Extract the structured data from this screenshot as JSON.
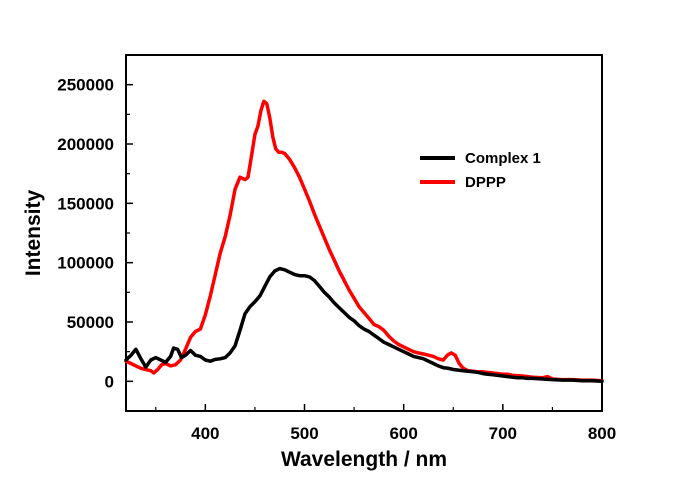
{
  "chart_data": {
    "type": "line",
    "title": "",
    "xlabel": "Wavelength / nm",
    "ylabel": "Intensity",
    "xlim": [
      320,
      800
    ],
    "ylim": [
      -25000,
      275000
    ],
    "x_ticks": [
      400,
      500,
      600,
      700,
      800
    ],
    "y_ticks": [
      0,
      50000,
      100000,
      150000,
      200000,
      250000
    ],
    "x_tick_labels": [
      "400",
      "500",
      "600",
      "700",
      "800"
    ],
    "y_tick_labels": [
      "0",
      "50000",
      "100000",
      "150000",
      "200000",
      "250000"
    ],
    "grid": false,
    "legend_position": "top-right",
    "series": [
      {
        "name": "Complex 1",
        "color": "#000000",
        "points": [
          [
            320,
            18000
          ],
          [
            325,
            22000
          ],
          [
            330,
            27000
          ],
          [
            335,
            19000
          ],
          [
            340,
            12000
          ],
          [
            345,
            18000
          ],
          [
            350,
            20000
          ],
          [
            355,
            18000
          ],
          [
            360,
            16000
          ],
          [
            365,
            21000
          ],
          [
            368,
            28000
          ],
          [
            372,
            27000
          ],
          [
            376,
            20000
          ],
          [
            380,
            22000
          ],
          [
            385,
            26000
          ],
          [
            390,
            22000
          ],
          [
            395,
            21000
          ],
          [
            400,
            18000
          ],
          [
            405,
            17000
          ],
          [
            410,
            18500
          ],
          [
            415,
            19000
          ],
          [
            420,
            20000
          ],
          [
            425,
            24000
          ],
          [
            430,
            30000
          ],
          [
            435,
            43000
          ],
          [
            440,
            57000
          ],
          [
            445,
            63000
          ],
          [
            450,
            67000
          ],
          [
            455,
            72000
          ],
          [
            460,
            80000
          ],
          [
            465,
            88000
          ],
          [
            470,
            93000
          ],
          [
            475,
            95000
          ],
          [
            480,
            94000
          ],
          [
            485,
            92000
          ],
          [
            490,
            90000
          ],
          [
            495,
            89000
          ],
          [
            500,
            89000
          ],
          [
            505,
            88000
          ],
          [
            510,
            85000
          ],
          [
            515,
            80000
          ],
          [
            520,
            75000
          ],
          [
            525,
            71000
          ],
          [
            530,
            66000
          ],
          [
            535,
            62000
          ],
          [
            540,
            58000
          ],
          [
            545,
            54000
          ],
          [
            550,
            51000
          ],
          [
            555,
            47000
          ],
          [
            560,
            44000
          ],
          [
            565,
            42000
          ],
          [
            570,
            39000
          ],
          [
            575,
            36000
          ],
          [
            580,
            33000
          ],
          [
            585,
            31000
          ],
          [
            590,
            29000
          ],
          [
            595,
            27000
          ],
          [
            600,
            25000
          ],
          [
            605,
            23000
          ],
          [
            610,
            21000
          ],
          [
            615,
            20000
          ],
          [
            620,
            19000
          ],
          [
            625,
            17000
          ],
          [
            630,
            15000
          ],
          [
            635,
            13000
          ],
          [
            640,
            11500
          ],
          [
            645,
            11000
          ],
          [
            650,
            10000
          ],
          [
            655,
            9500
          ],
          [
            660,
            9000
          ],
          [
            665,
            8500
          ],
          [
            670,
            8000
          ],
          [
            675,
            7500
          ],
          [
            680,
            6500
          ],
          [
            685,
            6000
          ],
          [
            690,
            5500
          ],
          [
            695,
            5000
          ],
          [
            700,
            4500
          ],
          [
            705,
            4000
          ],
          [
            710,
            3500
          ],
          [
            715,
            3000
          ],
          [
            720,
            3000
          ],
          [
            725,
            2500
          ],
          [
            730,
            2500
          ],
          [
            740,
            2000
          ],
          [
            750,
            1500
          ],
          [
            760,
            1000
          ],
          [
            770,
            1000
          ],
          [
            780,
            500
          ],
          [
            790,
            500
          ],
          [
            800,
            0
          ]
        ]
      },
      {
        "name": "DPPP",
        "color": "#ff0000",
        "points": [
          [
            320,
            17000
          ],
          [
            325,
            15000
          ],
          [
            330,
            13000
          ],
          [
            335,
            11000
          ],
          [
            340,
            10000
          ],
          [
            345,
            9000
          ],
          [
            348,
            7000
          ],
          [
            352,
            10000
          ],
          [
            356,
            14000
          ],
          [
            360,
            15000
          ],
          [
            365,
            13000
          ],
          [
            370,
            14000
          ],
          [
            375,
            18000
          ],
          [
            380,
            27000
          ],
          [
            385,
            37000
          ],
          [
            390,
            42000
          ],
          [
            395,
            44000
          ],
          [
            400,
            56000
          ],
          [
            405,
            72000
          ],
          [
            410,
            90000
          ],
          [
            415,
            108000
          ],
          [
            420,
            122000
          ],
          [
            425,
            140000
          ],
          [
            430,
            162000
          ],
          [
            435,
            172000
          ],
          [
            440,
            170000
          ],
          [
            443,
            172000
          ],
          [
            447,
            192000
          ],
          [
            450,
            208000
          ],
          [
            453,
            215000
          ],
          [
            456,
            228000
          ],
          [
            459,
            236000
          ],
          [
            462,
            234000
          ],
          [
            465,
            222000
          ],
          [
            468,
            206000
          ],
          [
            471,
            196000
          ],
          [
            474,
            193000
          ],
          [
            477,
            193000
          ],
          [
            480,
            192000
          ],
          [
            485,
            187000
          ],
          [
            490,
            180000
          ],
          [
            495,
            172000
          ],
          [
            500,
            162000
          ],
          [
            505,
            152000
          ],
          [
            510,
            141000
          ],
          [
            515,
            131000
          ],
          [
            520,
            121000
          ],
          [
            525,
            111000
          ],
          [
            530,
            102000
          ],
          [
            535,
            93000
          ],
          [
            540,
            85000
          ],
          [
            545,
            77000
          ],
          [
            550,
            70000
          ],
          [
            555,
            63000
          ],
          [
            560,
            58000
          ],
          [
            565,
            53000
          ],
          [
            570,
            48000
          ],
          [
            575,
            46000
          ],
          [
            580,
            43000
          ],
          [
            585,
            38000
          ],
          [
            590,
            34000
          ],
          [
            595,
            31000
          ],
          [
            600,
            29000
          ],
          [
            605,
            27000
          ],
          [
            610,
            25000
          ],
          [
            615,
            24000
          ],
          [
            620,
            23000
          ],
          [
            625,
            22000
          ],
          [
            630,
            21000
          ],
          [
            635,
            19000
          ],
          [
            640,
            18000
          ],
          [
            644,
            22000
          ],
          [
            648,
            24000
          ],
          [
            652,
            22000
          ],
          [
            656,
            15000
          ],
          [
            660,
            11000
          ],
          [
            665,
            9000
          ],
          [
            670,
            8500
          ],
          [
            675,
            8000
          ],
          [
            680,
            8000
          ],
          [
            690,
            7000
          ],
          [
            700,
            6000
          ],
          [
            705,
            6000
          ],
          [
            710,
            5000
          ],
          [
            720,
            4500
          ],
          [
            730,
            3500
          ],
          [
            740,
            3000
          ],
          [
            745,
            4000
          ],
          [
            750,
            2000
          ],
          [
            760,
            1500
          ],
          [
            770,
            1500
          ],
          [
            780,
            1000
          ],
          [
            790,
            1000
          ],
          [
            800,
            500
          ]
        ]
      }
    ]
  }
}
